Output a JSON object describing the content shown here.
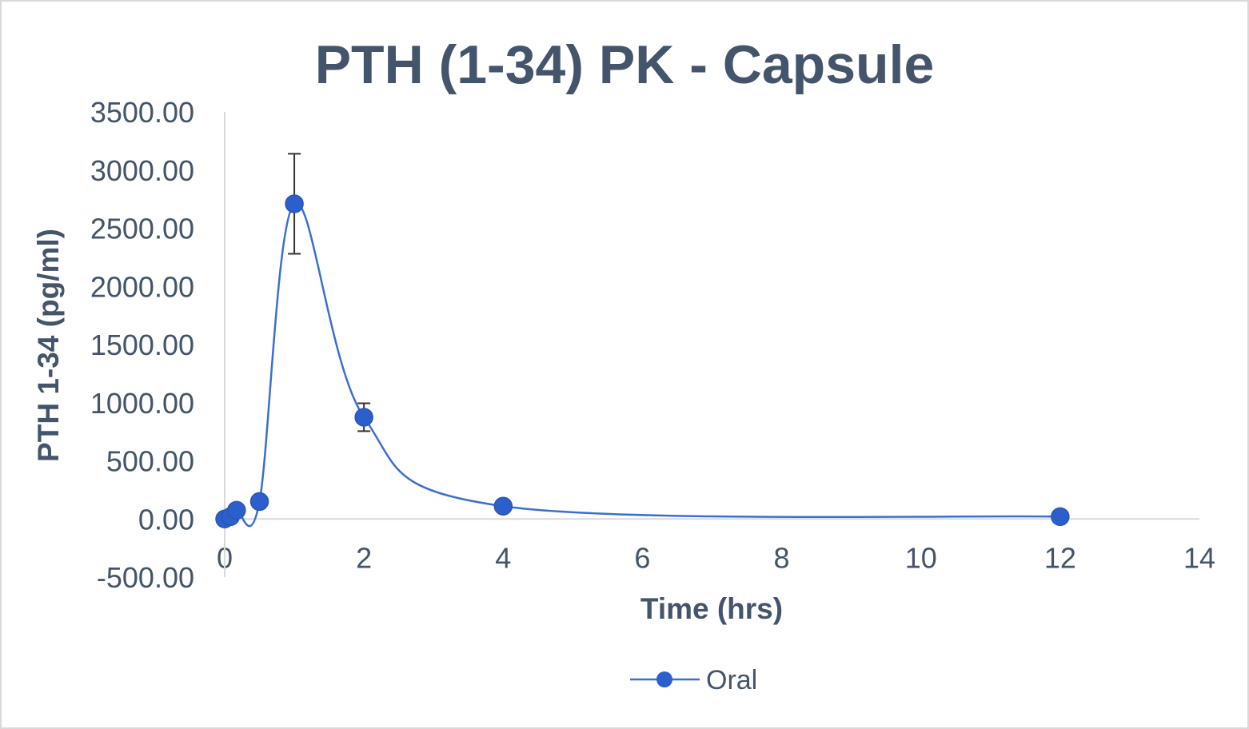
{
  "chart_data": {
    "type": "scatter",
    "title": "PTH (1-34) PK - Capsule",
    "xlabel": "Time (hrs)",
    "ylabel": "PTH 1-34 (pg/ml)",
    "xlim": [
      0,
      14
    ],
    "ylim": [
      -500,
      3500
    ],
    "xticks": [
      0,
      2,
      4,
      6,
      8,
      10,
      12,
      14
    ],
    "xtick_labels": [
      "0",
      "2",
      "4",
      "6",
      "8",
      "10",
      "12",
      "14"
    ],
    "yticks": [
      -500,
      0,
      500,
      1000,
      1500,
      2000,
      2500,
      3000,
      3500
    ],
    "ytick_labels": [
      "-500.00",
      "0.00",
      "500.00",
      "1000.00",
      "1500.00",
      "2000.00",
      "2500.00",
      "3000.00",
      "3500.00"
    ],
    "grid": false,
    "smooth_line": true,
    "legend_position": "bottom",
    "series": [
      {
        "name": "Oral",
        "color": "#3a6fd0",
        "marker_color": "#2c5fcc",
        "points": [
          {
            "x": 0,
            "y": 0
          },
          {
            "x": 0.083,
            "y": 20
          },
          {
            "x": 0.17,
            "y": 75
          },
          {
            "x": 0.5,
            "y": 150
          },
          {
            "x": 1,
            "y": 2710,
            "err": 430
          },
          {
            "x": 2,
            "y": 875,
            "err": 120
          },
          {
            "x": 4,
            "y": 110
          },
          {
            "x": 12,
            "y": 20
          }
        ]
      }
    ]
  },
  "colors": {
    "text": "#44546a",
    "axis": "#d9d9d9",
    "error_bar": "#333333"
  }
}
